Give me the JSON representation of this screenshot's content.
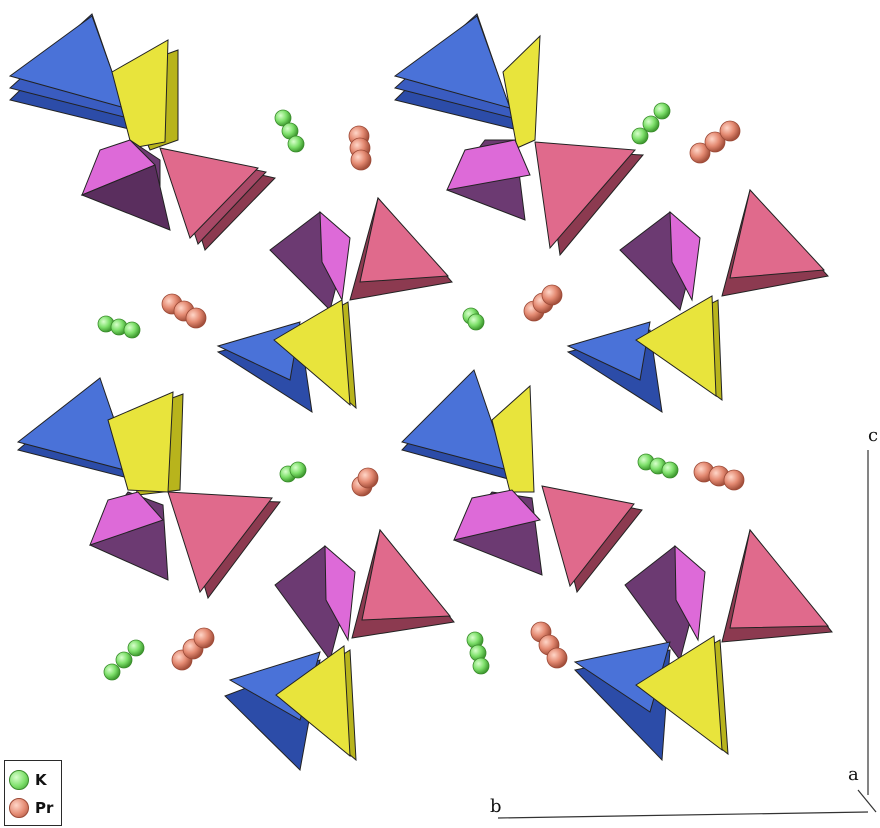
{
  "legend": {
    "items": [
      {
        "label": "K",
        "color": "#7ee06b",
        "edge": "#3a8c2c"
      },
      {
        "label": "Pr",
        "color": "#e48a72",
        "edge": "#9c4a37"
      }
    ]
  },
  "axes": {
    "a": "a",
    "b": "b",
    "c": "c"
  },
  "colors": {
    "blue": "#4a72d8",
    "blue_dark": "#2c4ca8",
    "yellow": "#e8e43c",
    "yellow_dark": "#b8b41c",
    "pink": "#e06a8c",
    "pink_dark": "#8c3a50",
    "magenta": "#dd6ad8",
    "purple": "#6c3a72",
    "k_atom": "#7ee06b",
    "pr_atom": "#e48a72"
  }
}
